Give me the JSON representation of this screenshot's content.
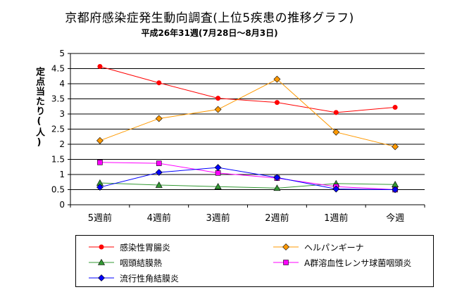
{
  "chart_data": {
    "type": "line",
    "title": "京都府感染症発生動向調査(上位5疾患の推移グラフ)",
    "subtitle": "平成26年31週(7月28日〜8月3日)",
    "xlabel": "",
    "ylabel": "定点当たり(人)",
    "ylim": [
      0,
      5
    ],
    "yticks": [
      "0",
      "0.5",
      "1",
      "1.5",
      "2",
      "2.5",
      "3",
      "3.5",
      "4",
      "4.5",
      "5"
    ],
    "categories": [
      "5週前",
      "4週前",
      "3週前",
      "2週前",
      "1週前",
      "今週"
    ],
    "grid": true,
    "legend_position": "bottom",
    "series": [
      {
        "name": "感染性胃腸炎",
        "color": "#ff0000",
        "marker": "circle",
        "values": [
          4.57,
          4.03,
          3.52,
          3.38,
          3.05,
          3.22
        ]
      },
      {
        "name": "ヘルパンギーナ",
        "color": "#ff9900",
        "marker": "diamond",
        "values": [
          2.12,
          2.85,
          3.15,
          4.15,
          2.4,
          1.92
        ]
      },
      {
        "name": "咽頭結膜熱",
        "color": "#339933",
        "marker": "triangle",
        "values": [
          0.72,
          0.65,
          0.6,
          0.55,
          0.7,
          0.67
        ]
      },
      {
        "name": "A群溶血性レンサ球菌咽頭炎",
        "color": "#ff00ff",
        "marker": "square",
        "values": [
          1.4,
          1.37,
          1.05,
          0.88,
          0.6,
          0.5
        ]
      },
      {
        "name": "流行性角結膜炎",
        "color": "#0000ff",
        "marker": "diamond",
        "values": [
          0.58,
          1.07,
          1.23,
          0.9,
          0.52,
          0.5
        ]
      }
    ]
  }
}
